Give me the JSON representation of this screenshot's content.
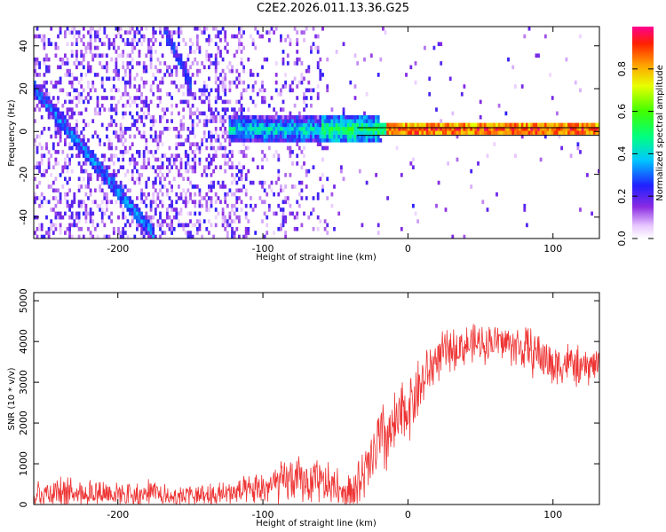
{
  "title": "C2E2.2026.011.13.36.G25",
  "chart_data": [
    {
      "type": "heatmap",
      "name": "spectrogram",
      "xlabel": "Height of straight line (km)",
      "ylabel": "Frequency (Hz)",
      "xlim": [
        -258,
        132
      ],
      "ylim": [
        -50,
        49
      ],
      "xticks": [
        -200,
        -100,
        0,
        100
      ],
      "yticks": [
        -40,
        -20,
        0,
        20,
        40
      ],
      "xtick_labels": [
        "-200",
        "-100",
        "0",
        "100"
      ],
      "ytick_labels": [
        "-40",
        "-20",
        "0",
        "20",
        "40"
      ],
      "colorbar": {
        "label": "Normalized spectral amplitude",
        "range": [
          0,
          1
        ],
        "ticks": [
          0.0,
          0.2,
          0.4,
          0.6,
          0.8
        ],
        "tick_labels": [
          "0.0",
          "0.2",
          "0.4",
          "0.6",
          "0.8"
        ]
      },
      "features": [
        {
          "name": "steady carrier line",
          "x": [
            -125,
            132
          ],
          "freq": 0,
          "amplitude_range": [
            0.3,
            1.0
          ]
        },
        {
          "name": "descending track",
          "x": [
            -258,
            -175
          ],
          "freq": [
            19,
            -50
          ]
        },
        {
          "name": "secondary track",
          "x": [
            -170,
            -150
          ],
          "freq": [
            49,
            20
          ]
        }
      ]
    },
    {
      "type": "line",
      "name": "snr",
      "xlabel": "Height of straight line (km)",
      "ylabel": "SNR (10 * v/v)",
      "xlim": [
        -258,
        132
      ],
      "ylim": [
        0,
        5200
      ],
      "xticks": [
        -200,
        -100,
        0,
        100
      ],
      "yticks": [
        0,
        1000,
        2000,
        3000,
        4000,
        5000
      ],
      "xtick_labels": [
        "-200",
        "-100",
        "0",
        "100"
      ],
      "ytick_labels": [
        "0",
        "1000",
        "2000",
        "3000",
        "4000",
        "5000"
      ],
      "series": [
        {
          "name": "SNR",
          "color": "#ee3333",
          "x": [
            -258,
            -220,
            -180,
            -140,
            -110,
            -90,
            -80,
            -60,
            -45,
            -35,
            -28,
            -20,
            -10,
            0,
            10,
            20,
            30,
            40,
            60,
            70,
            80,
            90,
            100,
            110,
            120,
            132
          ],
          "values": [
            300,
            300,
            260,
            220,
            300,
            500,
            620,
            520,
            380,
            450,
            800,
            1500,
            1800,
            2400,
            3000,
            3600,
            3800,
            3900,
            4000,
            3950,
            3800,
            3700,
            3400,
            3500,
            3300,
            3500
          ],
          "spread": [
            450,
            450,
            400,
            350,
            450,
            600,
            700,
            650,
            600,
            700,
            900,
            1200,
            1100,
            1000,
            900,
            700,
            600,
            600,
            550,
            600,
            700,
            700,
            700,
            600,
            600,
            500
          ]
        }
      ]
    }
  ]
}
